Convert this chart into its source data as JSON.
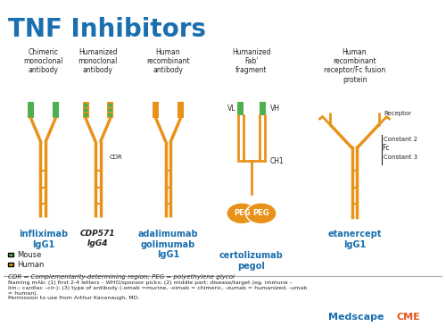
{
  "title": "TNF Inhibitors",
  "title_color": "#1a6faf",
  "title_fontsize": 20,
  "bg_color": "#ffffff",
  "orange": "#E8921A",
  "green": "#4CAF50",
  "blue_label": "#1a6faf",
  "black": "#222222",
  "footer_italic": "CDR = Complementarity-determining region; PEG = polyethylene glycol",
  "footer_text": "Naming mAb: (1) first 2-4 letters – WHO/sponsor picks; (2) middle part: disease/target (eg, immune –\nlim-; cardiac –cir-); (3) type of antibody (-omab =murine, -ximab = chimeric, -zumab = humanized, -umab\n= human).\nPermission to use from Arthur Kavanaugh, MD.",
  "medscape_text": "Medscape",
  "cme_text": "CME"
}
